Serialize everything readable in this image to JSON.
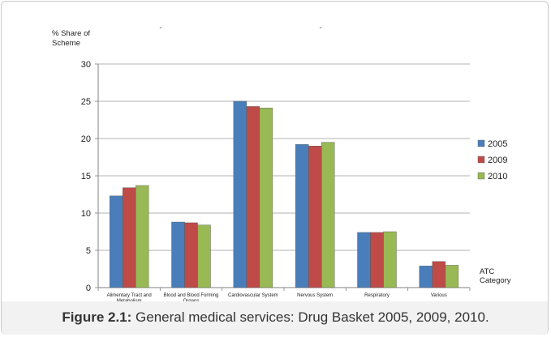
{
  "chart_data": {
    "type": "bar",
    "ylabel": [
      "% Share of",
      "Scheme"
    ],
    "xlabel": [
      "ATC",
      "Category"
    ],
    "ylim": [
      0,
      30
    ],
    "yticks": [
      0,
      5,
      10,
      15,
      20,
      25,
      30
    ],
    "grid": true,
    "legend_position": "right",
    "title_marks": [
      "-",
      "-"
    ],
    "categories": [
      [
        "Alimentary Tract and",
        "Metabolism"
      ],
      [
        "Blood and Blood Forming",
        "Organs"
      ],
      [
        "Cardiovascular System"
      ],
      [
        "Nervous System"
      ],
      [
        "Respiratory"
      ],
      [
        "Various"
      ]
    ],
    "series": [
      {
        "name": "2005",
        "color": "#4a7ebb",
        "values": [
          12.3,
          8.8,
          25.0,
          19.2,
          7.4,
          2.9
        ]
      },
      {
        "name": "2009",
        "color": "#be4b48",
        "values": [
          13.4,
          8.7,
          24.3,
          19.0,
          7.4,
          3.5
        ]
      },
      {
        "name": "2010",
        "color": "#98b954",
        "values": [
          13.7,
          8.4,
          24.1,
          19.5,
          7.5,
          3.0
        ]
      }
    ]
  },
  "caption": {
    "label": "Figure 2.1:",
    "text": " General medical services: Drug Basket 2005, 2009, 2010."
  }
}
